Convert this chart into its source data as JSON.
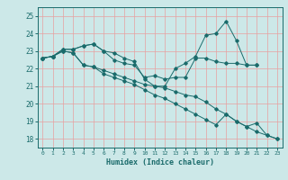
{
  "xlabel": "Humidex (Indice chaleur)",
  "ylabel": "",
  "bg_color": "#cce8e8",
  "grid_color": "#e8a0a0",
  "line_color": "#1a6b6b",
  "xlim": [
    -0.5,
    23.5
  ],
  "ylim": [
    17.5,
    25.5
  ],
  "yticks": [
    18,
    19,
    20,
    21,
    22,
    23,
    24,
    25
  ],
  "xticks": [
    0,
    1,
    2,
    3,
    4,
    5,
    6,
    7,
    8,
    9,
    10,
    11,
    12,
    13,
    14,
    15,
    16,
    17,
    18,
    19,
    20,
    21,
    22,
    23
  ],
  "series": [
    [
      22.6,
      22.7,
      23.1,
      23.1,
      23.3,
      23.4,
      23.0,
      22.9,
      22.6,
      22.4,
      21.4,
      21.0,
      21.0,
      22.0,
      22.3,
      22.7,
      23.9,
      24.0,
      24.7,
      23.6,
      22.2,
      22.2,
      null,
      null
    ],
    [
      22.6,
      22.7,
      23.1,
      23.1,
      23.3,
      23.4,
      23.0,
      22.5,
      22.3,
      22.2,
      21.5,
      21.6,
      21.4,
      21.5,
      21.5,
      22.6,
      22.6,
      22.4,
      22.3,
      22.3,
      22.2,
      22.2,
      null,
      null
    ],
    [
      22.6,
      22.7,
      23.0,
      22.9,
      22.2,
      22.1,
      21.9,
      21.7,
      21.5,
      21.3,
      21.1,
      21.0,
      20.9,
      20.7,
      20.5,
      20.4,
      20.1,
      19.7,
      19.4,
      19.0,
      18.7,
      18.4,
      18.2,
      18.0
    ],
    [
      22.6,
      22.7,
      23.0,
      22.9,
      22.2,
      22.1,
      21.7,
      21.5,
      21.3,
      21.1,
      20.8,
      20.5,
      20.3,
      20.0,
      19.7,
      19.4,
      19.1,
      18.8,
      19.4,
      19.0,
      18.7,
      18.9,
      18.2,
      18.0
    ]
  ]
}
